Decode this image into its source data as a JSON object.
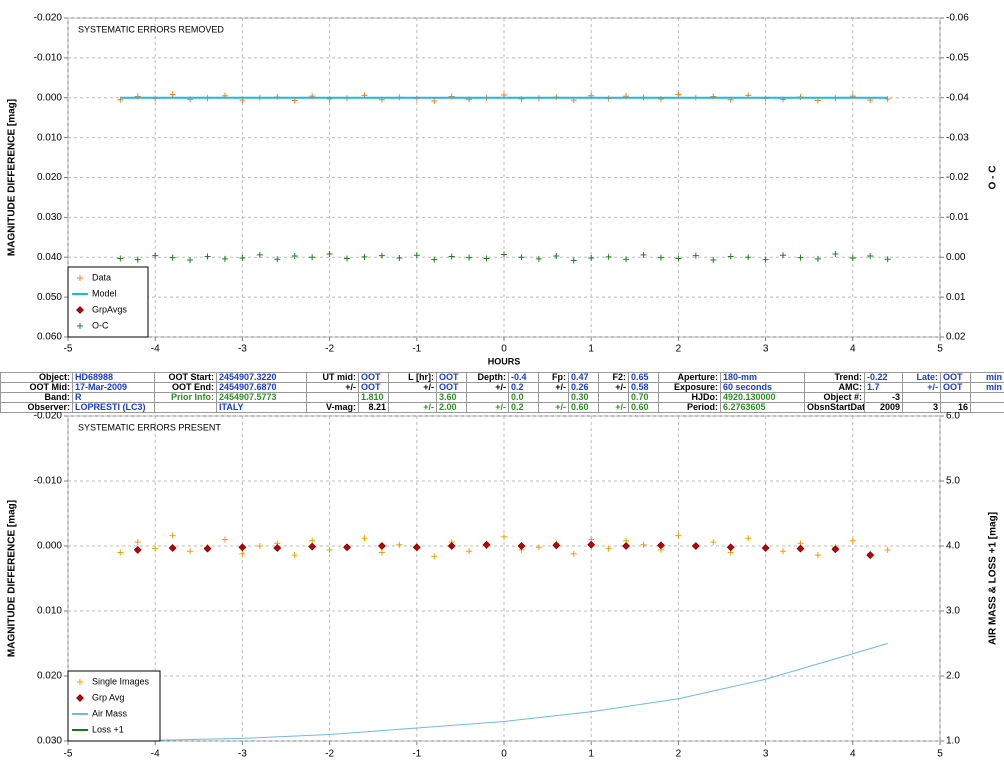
{
  "charts": [
    {
      "type": "scatter",
      "annotation": "SYSTEMATIC ERRORS REMOVED",
      "y_label": "MAGNITUDE DIFFERENCE [mag]",
      "y2_label": "O - C",
      "x_label": "HOURS",
      "xlim": [
        -5,
        5
      ],
      "xticks": [
        -5,
        -4,
        -3,
        -2,
        -1,
        0,
        1,
        2,
        3,
        4,
        5
      ],
      "ylim": [
        -0.02,
        0.06
      ],
      "y_inverted": true,
      "yticks": [
        {
          "value": -0.02,
          "label": "-0.020"
        },
        {
          "value": -0.01,
          "label": "-0.010"
        },
        {
          "value": 0,
          "label": "0.000"
        },
        {
          "value": 0.01,
          "label": "0.010"
        },
        {
          "value": 0.02,
          "label": "0.020"
        },
        {
          "value": 0.03,
          "label": "0.030"
        },
        {
          "value": 0.04,
          "label": "0.040"
        },
        {
          "value": 0.05,
          "label": "0.050"
        },
        {
          "value": 0.06,
          "label": "0.060"
        }
      ],
      "y2lim": [
        -0.06,
        0.02
      ],
      "y2_inverted": true,
      "y2ticks": [
        {
          "value": -0.06,
          "label": "-0.06"
        },
        {
          "value": -0.05,
          "label": "-0.05"
        },
        {
          "value": -0.04,
          "label": "-0.04"
        },
        {
          "value": -0.03,
          "label": "-0.03"
        },
        {
          "value": -0.02,
          "label": "-0.02"
        },
        {
          "value": -0.01,
          "label": "-0.01"
        },
        {
          "value": 0,
          "label": "0.00"
        },
        {
          "value": 0.01,
          "label": "0.01"
        },
        {
          "value": 0.02,
          "label": "0.02"
        }
      ],
      "grid": true,
      "legend": "lower left",
      "series": [
        {
          "name": "Data",
          "style": "plus",
          "color": "#f08020",
          "axis": "y",
          "x": [
            -4.4,
            -4.2,
            -4,
            -3.8,
            -3.6,
            -3.4,
            -3.2,
            -3,
            -2.8,
            -2.6,
            -2.4,
            -2.2,
            -2,
            -1.8,
            -1.6,
            -1.4,
            -1.2,
            -1,
            -0.8,
            -0.6,
            -0.4,
            -0.2,
            0,
            0.2,
            0.4,
            0.6,
            0.8,
            1,
            1.2,
            1.4,
            1.6,
            1.8,
            2,
            2.2,
            2.4,
            2.6,
            2.8,
            3,
            3.2,
            3.4,
            3.6,
            3.8,
            4,
            4.2,
            4.4
          ],
          "values": [
            0.0005,
            -0.0003,
            0.0002,
            -0.0008,
            0.0004,
            0.0001,
            -0.0005,
            0.0006,
            0,
            -0.0002,
            0.0007,
            -0.0004,
            0.0003,
            0.0001,
            -0.0006,
            0.0005,
            -0.0001,
            0.0002,
            0.0008,
            -0.0003,
            0.0004,
            0,
            -0.0007,
            0.0003,
            0.0001,
            -0.0002,
            0.0006,
            -0.0005,
            0.0002,
            -0.0004,
            -0.0001,
            0.0003,
            -0.0008,
            0,
            -0.0003,
            0.0005,
            -0.0006,
            0.0002,
            0.0004,
            -0.0002,
            0.0007,
            0.0001,
            -0.0004,
            0.0006,
            0.0003
          ]
        },
        {
          "name": "Model",
          "style": "line",
          "color": "#20b8e0",
          "axis": "y",
          "x": [
            -4.4,
            4.4
          ],
          "values": [
            0,
            0
          ]
        },
        {
          "name": "GrpAvgs",
          "style": "diamond",
          "color": "#c00000",
          "axis": "y",
          "x": [],
          "values": []
        },
        {
          "name": "O-C",
          "style": "plus",
          "color": "#208020",
          "axis": "y2",
          "x": [
            -4.4,
            -4.2,
            -4,
            -3.8,
            -3.6,
            -3.4,
            -3.2,
            -3,
            -2.8,
            -2.6,
            -2.4,
            -2.2,
            -2,
            -1.8,
            -1.6,
            -1.4,
            -1.2,
            -1,
            -0.8,
            -0.6,
            -0.4,
            -0.2,
            0,
            0.2,
            0.4,
            0.6,
            0.8,
            1,
            1.2,
            1.4,
            1.6,
            1.8,
            2,
            2.2,
            2.4,
            2.6,
            2.8,
            3,
            3.2,
            3.4,
            3.6,
            3.8,
            4,
            4.2,
            4.4
          ],
          "values": [
            0.0003,
            0.0006,
            -0.0004,
            0.0001,
            0.0007,
            -0.0002,
            0.0004,
            0.0002,
            -0.0006,
            0.0005,
            -0.0003,
            0,
            -0.0008,
            0.0003,
            -0.0001,
            -0.0004,
            0.0002,
            -0.0005,
            0.0006,
            -0.0002,
            0.0001,
            0.0003,
            -0.0007,
            0,
            0.0004,
            -0.0003,
            0.0008,
            0.0002,
            -0.0001,
            0.0005,
            -0.0006,
            0.0001,
            0.0003,
            -0.0004,
            0.0007,
            -0.0002,
            0,
            0.0006,
            -0.0005,
            0.0001,
            0.0004,
            -0.0008,
            0.0002,
            -0.0003,
            0.0005
          ]
        }
      ]
    },
    {
      "type": "scatter",
      "annotation": "SYSTEMATIC ERRORS PRESENT",
      "y_label": "MAGNITUDE DIFFERENCE [mag]",
      "y2_label": "AIR MASS & LOSS +1 [mag]",
      "xlim": [
        -5,
        5
      ],
      "xticks": [
        -5,
        -4,
        -3,
        -2,
        -1,
        0,
        1,
        2,
        3,
        4,
        5
      ],
      "ylim": [
        -0.02,
        0.03
      ],
      "y_inverted": true,
      "yticks": [
        {
          "value": -0.02,
          "label": "-0.020"
        },
        {
          "value": -0.01,
          "label": "-0.010"
        },
        {
          "value": 0,
          "label": "0.000"
        },
        {
          "value": 0.01,
          "label": "0.010"
        },
        {
          "value": 0.02,
          "label": "0.020"
        },
        {
          "value": 0.03,
          "label": "0.030"
        }
      ],
      "y2lim": [
        1,
        6
      ],
      "y2_inverted": false,
      "y2ticks": [
        {
          "value": 1,
          "label": "1.0"
        },
        {
          "value": 2,
          "label": "2.0"
        },
        {
          "value": 3,
          "label": "3.0"
        },
        {
          "value": 4,
          "label": "4.0"
        },
        {
          "value": 5,
          "label": "5.0"
        },
        {
          "value": 6,
          "label": "6.0"
        }
      ],
      "grid": true,
      "legend": "lower left",
      "series": [
        {
          "name": "Single Images",
          "style": "plus",
          "color": "#f0a000",
          "axis": "y",
          "x": [
            -4.4,
            -4.2,
            -4,
            -3.8,
            -3.6,
            -3.4,
            -3.2,
            -3,
            -2.8,
            -2.6,
            -2.4,
            -2.2,
            -2,
            -1.8,
            -1.6,
            -1.4,
            -1.2,
            -1,
            -0.8,
            -0.6,
            -0.4,
            -0.2,
            0,
            0.2,
            0.4,
            0.6,
            0.8,
            1,
            1.2,
            1.4,
            1.6,
            1.8,
            2,
            2.2,
            2.4,
            2.6,
            2.8,
            3,
            3.2,
            3.4,
            3.6,
            3.8,
            4,
            4.2,
            4.4
          ],
          "values": [
            0.001,
            -0.0006,
            0.0004,
            -0.0016,
            0.0008,
            0.0002,
            -0.001,
            0.0012,
            0,
            -0.0004,
            0.0014,
            -0.0008,
            0.0006,
            0.0002,
            -0.0012,
            0.001,
            -0.0002,
            0.0004,
            0.0016,
            -0.0006,
            0.0008,
            0,
            -0.0014,
            0.0006,
            0.0002,
            -0.0004,
            0.0012,
            -0.001,
            0.0004,
            -0.0008,
            -0.0002,
            0.0006,
            -0.0016,
            0,
            -0.0006,
            0.001,
            -0.0012,
            0.0004,
            0.0008,
            -0.0004,
            0.0014,
            0.0002,
            -0.0008,
            0.0012,
            0.0006
          ]
        },
        {
          "name": "Grp Avg",
          "style": "diamond",
          "color": "#c00000",
          "axis": "y",
          "x": [
            -4.2,
            -3.8,
            -3.4,
            -3,
            -2.6,
            -2.2,
            -1.8,
            -1.4,
            -1,
            -0.6,
            -0.2,
            0.2,
            0.6,
            1,
            1.4,
            1.8,
            2.2,
            2.6,
            3,
            3.4,
            3.8,
            4.2
          ],
          "values": [
            0.0006,
            0.0003,
            0.0004,
            0.0002,
            0.0003,
            0.0001,
            0.0002,
            0,
            0.0002,
            0,
            -0.0002,
            0,
            -0.0001,
            -0.0002,
            0,
            -0.0001,
            0,
            0.0002,
            0.0003,
            0.0004,
            0.0005,
            0.0014
          ]
        },
        {
          "name": "Air Mass",
          "style": "line",
          "color": "#70b8e8",
          "axis": "y2",
          "x": [
            -4.4,
            -3,
            -2,
            -1,
            0,
            1,
            2,
            3,
            4.4
          ],
          "values": [
            1,
            1.04,
            1.1,
            1.2,
            1.3,
            1.45,
            1.65,
            1.95,
            2.5
          ]
        },
        {
          "name": "Loss +1",
          "style": "line",
          "color": "#207020",
          "axis": "y2",
          "x": [],
          "values": []
        }
      ]
    }
  ],
  "table": {
    "rows": [
      [
        {
          "t": "Object:",
          "c": "k"
        },
        {
          "t": "HD68988",
          "c": "b"
        },
        {
          "t": "OOT Start:",
          "c": "k"
        },
        {
          "t": "2454907.3220",
          "c": "b"
        },
        {
          "t": "UT mid:",
          "c": "k"
        },
        {
          "t": "OOT",
          "c": "b"
        },
        {
          "t": "L [hr]:",
          "c": "k"
        },
        {
          "t": "OOT",
          "c": "b"
        },
        {
          "t": "Depth:",
          "c": "k"
        },
        {
          "t": "-0.4",
          "c": "b"
        },
        {
          "t": "Fp:",
          "c": "k"
        },
        {
          "t": "0.47",
          "c": "b"
        },
        {
          "t": "F2:",
          "c": "k"
        },
        {
          "t": "0.65",
          "c": "b"
        },
        {
          "t": "Aperture:",
          "c": "k"
        },
        {
          "t": "180-mm",
          "c": "b"
        },
        {
          "t": "Trend:",
          "c": "k"
        },
        {
          "t": "-0.22",
          "c": "b"
        },
        {
          "t": "Late:",
          "c": "b"
        },
        {
          "t": "OOT",
          "c": "b"
        },
        {
          "t": "min",
          "c": "b"
        }
      ],
      [
        {
          "t": "OOT Mid:",
          "c": "k"
        },
        {
          "t": "17-Mar-2009",
          "c": "b"
        },
        {
          "t": "OOT End:",
          "c": "k"
        },
        {
          "t": "2454907.6870",
          "c": "b"
        },
        {
          "t": "+/-",
          "c": "k"
        },
        {
          "t": "OOT",
          "c": "b"
        },
        {
          "t": "+/-",
          "c": "k"
        },
        {
          "t": "OOT",
          "c": "b"
        },
        {
          "t": "+/-",
          "c": "k"
        },
        {
          "t": "0.2",
          "c": "b"
        },
        {
          "t": "+/-",
          "c": "k"
        },
        {
          "t": "0.26",
          "c": "b"
        },
        {
          "t": "+/-",
          "c": "k"
        },
        {
          "t": "0.58",
          "c": "b"
        },
        {
          "t": "Exposure:",
          "c": "k"
        },
        {
          "t": "60 seconds",
          "c": "b"
        },
        {
          "t": "AMC:",
          "c": "k"
        },
        {
          "t": "1.7",
          "c": "b"
        },
        {
          "t": "+/-",
          "c": "b"
        },
        {
          "t": "OOT",
          "c": "b"
        },
        {
          "t": "min",
          "c": "b"
        }
      ],
      [
        {
          "t": "Band:",
          "c": "k"
        },
        {
          "t": "R",
          "c": "b"
        },
        {
          "t": "Prior Info:",
          "c": "g"
        },
        {
          "t": "2454907.5773",
          "c": "g"
        },
        null,
        {
          "t": "1.810",
          "c": "g"
        },
        null,
        {
          "t": "3.60",
          "c": "g"
        },
        null,
        {
          "t": "0.0",
          "c": "g"
        },
        null,
        {
          "t": "0.30",
          "c": "g"
        },
        null,
        {
          "t": "0.70",
          "c": "g"
        },
        {
          "t": "HJDo:",
          "c": "k"
        },
        {
          "t": "4920.130000",
          "c": "g"
        },
        {
          "t": "Object #:",
          "c": "k"
        },
        {
          "t": "-3",
          "c": "k"
        },
        null,
        null,
        null
      ],
      [
        {
          "t": "Observer:",
          "c": "k"
        },
        {
          "t": "LOPRESTI (LC3)",
          "c": "b"
        },
        null,
        {
          "t": "ITALY",
          "c": "b"
        },
        {
          "t": "V-mag:",
          "c": "k"
        },
        {
          "t": "8.21",
          "c": "k"
        },
        {
          "t": "+/-",
          "c": "g"
        },
        {
          "t": "2.00",
          "c": "g"
        },
        {
          "t": "+/-",
          "c": "g"
        },
        {
          "t": "0.2",
          "c": "g"
        },
        {
          "t": "+/-",
          "c": "g"
        },
        {
          "t": "0.60",
          "c": "g"
        },
        {
          "t": "+/-",
          "c": "g"
        },
        {
          "t": "0.60",
          "c": "g"
        },
        {
          "t": "Period:",
          "c": "k"
        },
        {
          "t": "6.2763605",
          "c": "g"
        },
        {
          "t": "ObsnStartDate:",
          "c": "k"
        },
        {
          "t": "2009",
          "c": "k"
        },
        {
          "t": "3",
          "c": "k"
        },
        {
          "t": "16",
          "c": "k"
        },
        null
      ]
    ]
  }
}
